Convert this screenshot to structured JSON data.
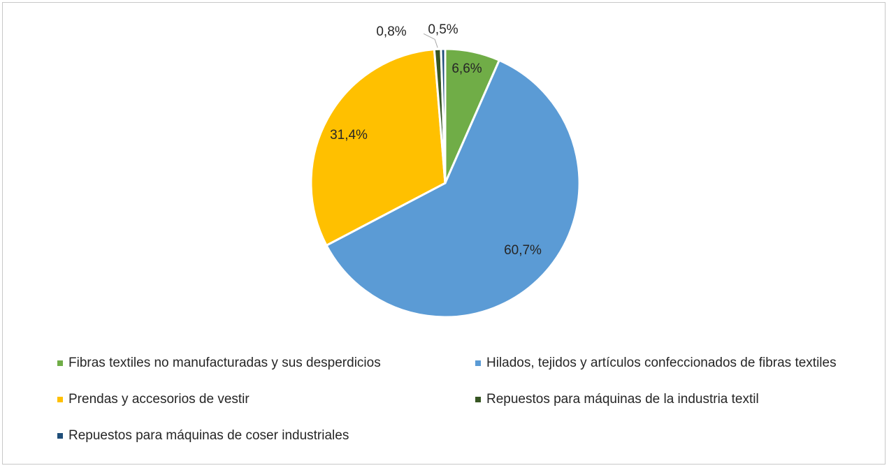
{
  "chart_data": {
    "type": "pie",
    "slices": [
      {
        "name": "Fibras textiles no manufacturadas y sus desperdicios",
        "value": 6.6,
        "label": "6,6%",
        "color": "#70ad47"
      },
      {
        "name": "Hilados, tejidos y artículos confeccionados de fibras textiles",
        "value": 60.7,
        "label": "60,7%",
        "color": "#5b9bd5"
      },
      {
        "name": "Prendas y accesorios de vestir",
        "value": 31.4,
        "label": "31,4%",
        "color": "#ffc000"
      },
      {
        "name": "Repuestos para máquinas de la industria textil",
        "value": 0.8,
        "label": "0,8%",
        "color": "#375623"
      },
      {
        "name": "Repuestos para máquinas de coser industriales",
        "value": 0.5,
        "label": "0,5%",
        "color": "#1f4e79"
      }
    ],
    "legend_position": "bottom"
  }
}
